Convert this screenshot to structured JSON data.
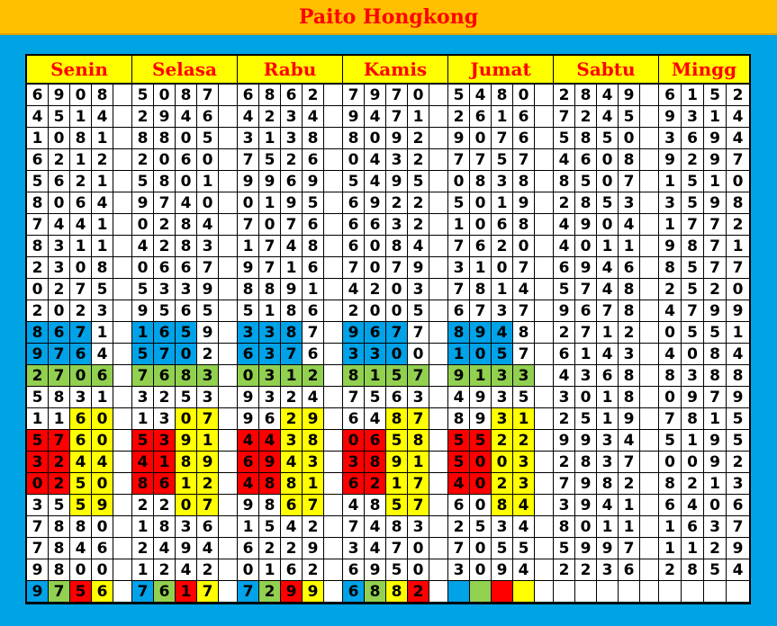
{
  "title": "Paito Hongkong",
  "colors": {
    "w": "#ffffff",
    "b": "#00a2e8",
    "g": "#92d050",
    "r": "#ff0000",
    "y": "#ffff00",
    "background": "#00a3e4",
    "title_bar": "#ffc000",
    "header_text": "#ff0000"
  },
  "days": [
    {
      "name": "Senin",
      "rows": [
        "6908",
        "4514",
        "1081",
        "6212",
        "5621",
        "8064",
        "7441",
        "8311",
        "2308",
        "0275",
        "2023",
        "8671",
        "9764",
        "2706",
        "5831",
        "1160",
        "5760",
        "3244",
        "0250",
        "3559",
        "7880",
        "7846",
        "9800",
        "9756"
      ],
      "cell_colors": [
        "wwww",
        "wwww",
        "wwww",
        "wwww",
        "wwww",
        "wwww",
        "wwww",
        "wwww",
        "wwww",
        "wwww",
        "wwww",
        "bbbw",
        "bbbw",
        "gggg",
        "wwww",
        "wwyy",
        "rryy",
        "rryy",
        "rryy",
        "wwyy",
        "wwww",
        "wwww",
        "wwww",
        "bgry"
      ]
    },
    {
      "name": "Selasa",
      "rows": [
        "5087",
        "2946",
        "8805",
        "2060",
        "5801",
        "9740",
        "0284",
        "4283",
        "0667",
        "5339",
        "9565",
        "1659",
        "5702",
        "7683",
        "3253",
        "1307",
        "5391",
        "4189",
        "8612",
        "2207",
        "1836",
        "2494",
        "1242",
        "7617"
      ],
      "cell_colors": [
        "wwww",
        "wwww",
        "wwww",
        "wwww",
        "wwww",
        "wwww",
        "wwww",
        "wwww",
        "wwww",
        "wwww",
        "wwww",
        "bbbw",
        "bbbw",
        "gggg",
        "wwww",
        "wwyy",
        "rryy",
        "rryy",
        "rryy",
        "wwyy",
        "wwww",
        "wwww",
        "wwww",
        "bgry"
      ]
    },
    {
      "name": "Rabu",
      "rows": [
        "6862",
        "4234",
        "3138",
        "7526",
        "9969",
        "0195",
        "7076",
        "1748",
        "9716",
        "8891",
        "5186",
        "3387",
        "6376",
        "0312",
        "9324",
        "9629",
        "4438",
        "6943",
        "4881",
        "9867",
        "1542",
        "6229",
        "0162",
        "7299"
      ],
      "cell_colors": [
        "wwww",
        "wwww",
        "wwww",
        "wwww",
        "wwww",
        "wwww",
        "wwww",
        "wwww",
        "wwww",
        "wwww",
        "wwww",
        "bbbw",
        "bbbw",
        "gggg",
        "wwww",
        "wwyy",
        "rryy",
        "rryy",
        "rryy",
        "wwyy",
        "wwww",
        "wwww",
        "wwww",
        "bgry"
      ]
    },
    {
      "name": "Kamis",
      "rows": [
        "7970",
        "9471",
        "8092",
        "0432",
        "5495",
        "6922",
        "6632",
        "6084",
        "7079",
        "4203",
        "2005",
        "9677",
        "3300",
        "8157",
        "7563",
        "6487",
        "0658",
        "3891",
        "6217",
        "4857",
        "7483",
        "3470",
        "6950",
        "6882"
      ],
      "cell_colors": [
        "wwww",
        "wwww",
        "wwww",
        "wwww",
        "wwww",
        "wwww",
        "wwww",
        "wwww",
        "wwww",
        "wwww",
        "wwww",
        "bbbw",
        "bbbw",
        "gggg",
        "wwww",
        "wwyy",
        "rryy",
        "rryy",
        "rryy",
        "wwyy",
        "wwww",
        "wwww",
        "wwww",
        "bgyr"
      ]
    },
    {
      "name": "Jumat",
      "rows": [
        "5480",
        "2616",
        "9076",
        "7757",
        "0838",
        "5019",
        "1068",
        "7620",
        "3107",
        "7814",
        "6737",
        "8948",
        "1057",
        "9133",
        "4935",
        "8931",
        "5522",
        "5003",
        "4023",
        "6084",
        "2534",
        "7055",
        "3094",
        ""
      ],
      "cell_colors": [
        "wwww",
        "wwww",
        "wwww",
        "wwww",
        "wwww",
        "wwww",
        "wwww",
        "wwww",
        "wwww",
        "wwww",
        "wwww",
        "bbbw",
        "bbbw",
        "gggg",
        "wwww",
        "wwyy",
        "rryy",
        "rryy",
        "rryy",
        "wwyy",
        "wwww",
        "wwww",
        "wwww",
        "bgry"
      ]
    },
    {
      "name": "Sabtu",
      "rows": [
        "2849",
        "7245",
        "5850",
        "4608",
        "8507",
        "2853",
        "4904",
        "4011",
        "6946",
        "5748",
        "9678",
        "2712",
        "6143",
        "4368",
        "3018",
        "2519",
        "9934",
        "2837",
        "7982",
        "3941",
        "8011",
        "5997",
        "2236",
        ""
      ]
    },
    {
      "name": "Mingg",
      "rows": [
        "6152",
        "9314",
        "3694",
        "9297",
        "1510",
        "3598",
        "1772",
        "9871",
        "8577",
        "2520",
        "4799",
        "0551",
        "4084",
        "8388",
        "0979",
        "7815",
        "5195",
        "0092",
        "8213",
        "6406",
        "1637",
        "1129",
        "2854",
        ""
      ]
    }
  ]
}
